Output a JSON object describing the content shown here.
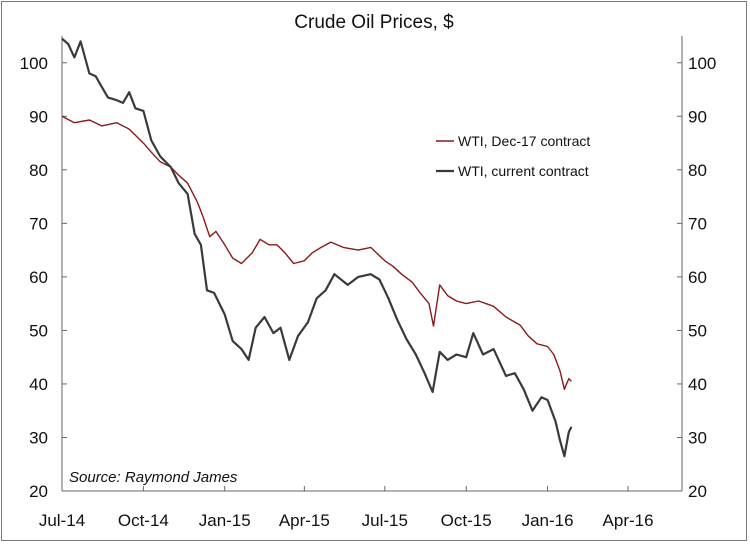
{
  "chart_data": {
    "type": "line",
    "title": "Crude Oil Prices, $",
    "source": "Source: Raymond James",
    "xlabel": "",
    "ylabel": "",
    "x_ticks": [
      "Jul-14",
      "Oct-14",
      "Jan-15",
      "Apr-15",
      "Jul-15",
      "Oct-15",
      "Jan-16",
      "Apr-16"
    ],
    "x_range": [
      "2014-07-01",
      "2016-06-01"
    ],
    "ylim": [
      20,
      105
    ],
    "y_ticks": [
      20,
      30,
      40,
      50,
      60,
      70,
      80,
      90,
      100
    ],
    "y_axis_right": true,
    "grid": false,
    "legend_position": "top-right",
    "series": [
      {
        "name": "WTI, Dec-17 contract",
        "color": "#8b1a1a",
        "points": [
          [
            "2014-07-01",
            90.0
          ],
          [
            "2014-07-15",
            88.8
          ],
          [
            "2014-08-01",
            89.3
          ],
          [
            "2014-08-15",
            88.2
          ],
          [
            "2014-09-01",
            88.8
          ],
          [
            "2014-09-15",
            87.6
          ],
          [
            "2014-10-01",
            85.0
          ],
          [
            "2014-10-10",
            83.3
          ],
          [
            "2014-10-20",
            81.5
          ],
          [
            "2014-11-01",
            80.5
          ],
          [
            "2014-11-10",
            79.0
          ],
          [
            "2014-11-20",
            77.5
          ],
          [
            "2014-12-01",
            74.0
          ],
          [
            "2014-12-08",
            71.0
          ],
          [
            "2014-12-15",
            67.5
          ],
          [
            "2014-12-22",
            68.5
          ],
          [
            "2015-01-01",
            66.0
          ],
          [
            "2015-01-10",
            63.5
          ],
          [
            "2015-01-20",
            62.5
          ],
          [
            "2015-02-01",
            64.5
          ],
          [
            "2015-02-10",
            67.0
          ],
          [
            "2015-02-20",
            66.0
          ],
          [
            "2015-03-01",
            66.0
          ],
          [
            "2015-03-10",
            64.5
          ],
          [
            "2015-03-20",
            62.5
          ],
          [
            "2015-04-01",
            63.0
          ],
          [
            "2015-04-10",
            64.5
          ],
          [
            "2015-04-20",
            65.5
          ],
          [
            "2015-05-01",
            66.5
          ],
          [
            "2015-05-15",
            65.5
          ],
          [
            "2015-06-01",
            65.0
          ],
          [
            "2015-06-15",
            65.5
          ],
          [
            "2015-07-01",
            63.0
          ],
          [
            "2015-07-10",
            62.0
          ],
          [
            "2015-07-20",
            60.5
          ],
          [
            "2015-08-01",
            59.0
          ],
          [
            "2015-08-10",
            57.0
          ],
          [
            "2015-08-20",
            55.0
          ],
          [
            "2015-08-25",
            50.8
          ],
          [
            "2015-09-01",
            58.5
          ],
          [
            "2015-09-10",
            56.5
          ],
          [
            "2015-09-20",
            55.5
          ],
          [
            "2015-10-01",
            55.0
          ],
          [
            "2015-10-15",
            55.5
          ],
          [
            "2015-11-01",
            54.5
          ],
          [
            "2015-11-15",
            52.5
          ],
          [
            "2015-12-01",
            51.0
          ],
          [
            "2015-12-10",
            49.0
          ],
          [
            "2015-12-20",
            47.5
          ],
          [
            "2016-01-01",
            47.0
          ],
          [
            "2016-01-08",
            45.5
          ],
          [
            "2016-01-15",
            42.5
          ],
          [
            "2016-01-20",
            39.0
          ],
          [
            "2016-01-25",
            41.0
          ],
          [
            "2016-01-28",
            40.5
          ]
        ]
      },
      {
        "name": "WTI, current contract",
        "color": "#3a3a3a",
        "points": [
          [
            "2014-07-01",
            104.5
          ],
          [
            "2014-07-08",
            103.5
          ],
          [
            "2014-07-15",
            101.0
          ],
          [
            "2014-07-22",
            104.0
          ],
          [
            "2014-08-01",
            98.0
          ],
          [
            "2014-08-08",
            97.5
          ],
          [
            "2014-08-15",
            95.5
          ],
          [
            "2014-08-22",
            93.5
          ],
          [
            "2014-09-01",
            93.0
          ],
          [
            "2014-09-08",
            92.5
          ],
          [
            "2014-09-15",
            94.5
          ],
          [
            "2014-09-22",
            91.5
          ],
          [
            "2014-10-01",
            91.0
          ],
          [
            "2014-10-10",
            85.5
          ],
          [
            "2014-10-20",
            82.5
          ],
          [
            "2014-11-01",
            80.5
          ],
          [
            "2014-11-10",
            77.5
          ],
          [
            "2014-11-20",
            75.5
          ],
          [
            "2014-11-28",
            68.0
          ],
          [
            "2014-12-05",
            66.0
          ],
          [
            "2014-12-12",
            57.5
          ],
          [
            "2014-12-20",
            57.0
          ],
          [
            "2015-01-01",
            53.0
          ],
          [
            "2015-01-10",
            48.0
          ],
          [
            "2015-01-20",
            46.5
          ],
          [
            "2015-01-28",
            44.5
          ],
          [
            "2015-02-05",
            50.5
          ],
          [
            "2015-02-15",
            52.5
          ],
          [
            "2015-02-25",
            49.5
          ],
          [
            "2015-03-05",
            50.5
          ],
          [
            "2015-03-15",
            44.5
          ],
          [
            "2015-03-25",
            49.0
          ],
          [
            "2015-04-05",
            51.5
          ],
          [
            "2015-04-15",
            56.0
          ],
          [
            "2015-04-25",
            57.5
          ],
          [
            "2015-05-05",
            60.5
          ],
          [
            "2015-05-20",
            58.5
          ],
          [
            "2015-06-01",
            60.0
          ],
          [
            "2015-06-15",
            60.5
          ],
          [
            "2015-06-25",
            59.5
          ],
          [
            "2015-07-05",
            56.0
          ],
          [
            "2015-07-15",
            52.0
          ],
          [
            "2015-07-25",
            48.5
          ],
          [
            "2015-08-05",
            45.5
          ],
          [
            "2015-08-15",
            42.0
          ],
          [
            "2015-08-24",
            38.5
          ],
          [
            "2015-09-01",
            46.0
          ],
          [
            "2015-09-10",
            44.5
          ],
          [
            "2015-09-20",
            45.5
          ],
          [
            "2015-10-01",
            45.0
          ],
          [
            "2015-10-09",
            49.5
          ],
          [
            "2015-10-20",
            45.5
          ],
          [
            "2015-11-01",
            46.5
          ],
          [
            "2015-11-15",
            41.5
          ],
          [
            "2015-11-25",
            42.0
          ],
          [
            "2015-12-05",
            39.0
          ],
          [
            "2015-12-15",
            35.0
          ],
          [
            "2015-12-25",
            37.5
          ],
          [
            "2016-01-01",
            37.0
          ],
          [
            "2016-01-10",
            33.0
          ],
          [
            "2016-01-15",
            29.5
          ],
          [
            "2016-01-20",
            26.5
          ],
          [
            "2016-01-25",
            31.0
          ],
          [
            "2016-01-28",
            32.0
          ]
        ]
      }
    ]
  }
}
